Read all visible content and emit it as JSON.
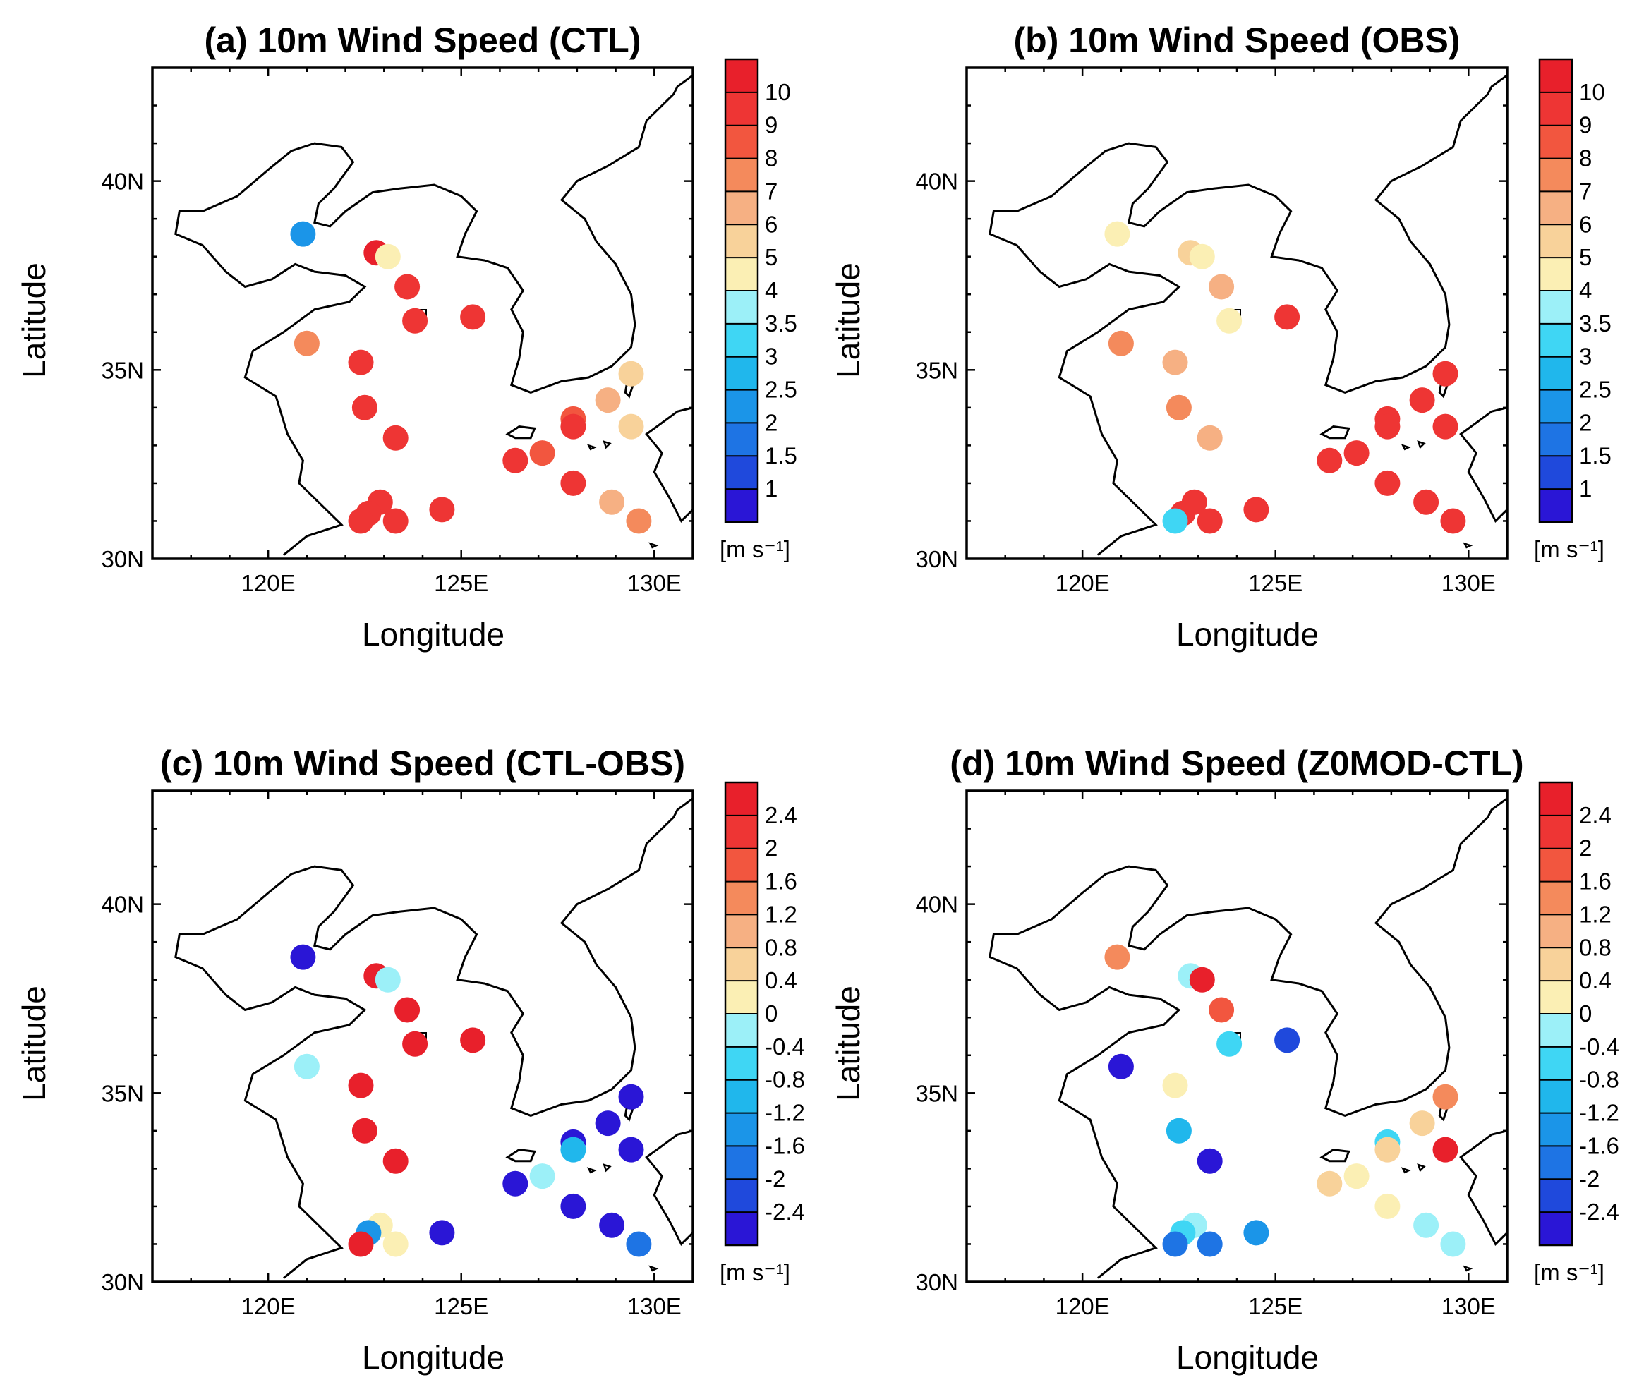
{
  "figure": {
    "x_axis_label": "Longitude",
    "y_axis_label": "Latitude",
    "xticks": [
      "120E",
      "125E",
      "130E"
    ],
    "yticks": [
      "30N",
      "35N",
      "40N"
    ],
    "units_label": "[m s⁻¹]"
  },
  "chart_data": [
    {
      "type": "scatter",
      "panel": "a",
      "title": "(a) 10m Wind Speed (CTL)",
      "xlabel": "Longitude",
      "ylabel": "Latitude",
      "xlim": [
        117,
        131
      ],
      "ylim": [
        30,
        43
      ],
      "colorbar": {
        "labels": [
          "1",
          "1.5",
          "2",
          "2.5",
          "3",
          "3.5",
          "4",
          "5",
          "6",
          "7",
          "8",
          "9",
          "10"
        ],
        "colors": [
          "#2a16d6",
          "#1f49dc",
          "#1e74e4",
          "#1b95e8",
          "#20b7ec",
          "#3fd6f4",
          "#9cf0f8",
          "#fbefb4",
          "#f8d29a",
          "#f6b083",
          "#f48a5c",
          "#f2563f",
          "#ee3534",
          "#e8202b"
        ]
      },
      "points": [
        {
          "lon": 120.9,
          "lat": 38.6,
          "value": 2.0
        },
        {
          "lon": 122.8,
          "lat": 38.1,
          "value": 10.0
        },
        {
          "lon": 123.1,
          "lat": 38.0,
          "value": 4.5
        },
        {
          "lon": 123.6,
          "lat": 37.2,
          "value": 9.5
        },
        {
          "lon": 123.8,
          "lat": 36.3,
          "value": 9.5
        },
        {
          "lon": 125.3,
          "lat": 36.4,
          "value": 9.5
        },
        {
          "lon": 121.0,
          "lat": 35.7,
          "value": 7.5
        },
        {
          "lon": 122.4,
          "lat": 35.2,
          "value": 9.5
        },
        {
          "lon": 122.5,
          "lat": 34.0,
          "value": 9.5
        },
        {
          "lon": 123.3,
          "lat": 33.2,
          "value": 9.5
        },
        {
          "lon": 122.9,
          "lat": 31.5,
          "value": 9.5
        },
        {
          "lon": 122.6,
          "lat": 31.2,
          "value": 9.5
        },
        {
          "lon": 122.4,
          "lat": 31.0,
          "value": 9.5
        },
        {
          "lon": 123.3,
          "lat": 31.0,
          "value": 9.5
        },
        {
          "lon": 124.5,
          "lat": 31.3,
          "value": 9.5
        },
        {
          "lon": 126.4,
          "lat": 32.6,
          "value": 9.5
        },
        {
          "lon": 127.1,
          "lat": 32.8,
          "value": 8.5
        },
        {
          "lon": 127.9,
          "lat": 33.7,
          "value": 8.5
        },
        {
          "lon": 127.9,
          "lat": 33.5,
          "value": 9.5
        },
        {
          "lon": 127.9,
          "lat": 32.0,
          "value": 9.5
        },
        {
          "lon": 128.8,
          "lat": 34.2,
          "value": 6.5
        },
        {
          "lon": 129.4,
          "lat": 34.9,
          "value": 5.5
        },
        {
          "lon": 129.4,
          "lat": 33.5,
          "value": 5.5
        },
        {
          "lon": 128.9,
          "lat": 31.5,
          "value": 6.5
        },
        {
          "lon": 129.6,
          "lat": 31.0,
          "value": 7.5
        }
      ]
    },
    {
      "type": "scatter",
      "panel": "b",
      "title": "(b) 10m Wind Speed (OBS)",
      "xlabel": "Longitude",
      "ylabel": "Latitude",
      "xlim": [
        117,
        131
      ],
      "ylim": [
        30,
        43
      ],
      "colorbar": {
        "labels": [
          "1",
          "1.5",
          "2",
          "2.5",
          "3",
          "3.5",
          "4",
          "5",
          "6",
          "7",
          "8",
          "9",
          "10"
        ],
        "colors": [
          "#2a16d6",
          "#1f49dc",
          "#1e74e4",
          "#1b95e8",
          "#20b7ec",
          "#3fd6f4",
          "#9cf0f8",
          "#fbefb4",
          "#f8d29a",
          "#f6b083",
          "#f48a5c",
          "#f2563f",
          "#ee3534",
          "#e8202b"
        ]
      },
      "points": [
        {
          "lon": 120.9,
          "lat": 38.6,
          "value": 4.5
        },
        {
          "lon": 122.8,
          "lat": 38.1,
          "value": 5.5
        },
        {
          "lon": 123.1,
          "lat": 38.0,
          "value": 4.5
        },
        {
          "lon": 123.6,
          "lat": 37.2,
          "value": 6.5
        },
        {
          "lon": 123.8,
          "lat": 36.3,
          "value": 4.5
        },
        {
          "lon": 125.3,
          "lat": 36.4,
          "value": 9.5
        },
        {
          "lon": 121.0,
          "lat": 35.7,
          "value": 7.5
        },
        {
          "lon": 122.4,
          "lat": 35.2,
          "value": 6.5
        },
        {
          "lon": 122.5,
          "lat": 34.0,
          "value": 7.5
        },
        {
          "lon": 123.3,
          "lat": 33.2,
          "value": 6.5
        },
        {
          "lon": 122.9,
          "lat": 31.5,
          "value": 9.5
        },
        {
          "lon": 122.6,
          "lat": 31.2,
          "value": 9.5
        },
        {
          "lon": 122.4,
          "lat": 31.0,
          "value": 3.2
        },
        {
          "lon": 123.3,
          "lat": 31.0,
          "value": 9.5
        },
        {
          "lon": 124.5,
          "lat": 31.3,
          "value": 9.5
        },
        {
          "lon": 126.4,
          "lat": 32.6,
          "value": 9.5
        },
        {
          "lon": 127.1,
          "lat": 32.8,
          "value": 9.5
        },
        {
          "lon": 127.9,
          "lat": 33.7,
          "value": 9.5
        },
        {
          "lon": 127.9,
          "lat": 33.5,
          "value": 9.5
        },
        {
          "lon": 127.9,
          "lat": 32.0,
          "value": 9.5
        },
        {
          "lon": 128.8,
          "lat": 34.2,
          "value": 9.5
        },
        {
          "lon": 129.4,
          "lat": 34.9,
          "value": 9.5
        },
        {
          "lon": 129.4,
          "lat": 33.5,
          "value": 9.5
        },
        {
          "lon": 128.9,
          "lat": 31.5,
          "value": 9.5
        },
        {
          "lon": 129.6,
          "lat": 31.0,
          "value": 9.5
        }
      ]
    },
    {
      "type": "scatter",
      "panel": "c",
      "title": "(c) 10m Wind Speed (CTL-OBS)",
      "xlabel": "Longitude",
      "ylabel": "Latitude",
      "xlim": [
        117,
        131
      ],
      "ylim": [
        30,
        43
      ],
      "colorbar": {
        "labels": [
          "-2.4",
          "-2",
          "-1.6",
          "-1.2",
          "-0.8",
          "-0.4",
          "0",
          "0.4",
          "0.8",
          "1.2",
          "1.6",
          "2",
          "2.4"
        ],
        "colors": [
          "#2a16d6",
          "#1f49dc",
          "#1e74e4",
          "#1b95e8",
          "#20b7ec",
          "#3fd6f4",
          "#9cf0f8",
          "#fbefb4",
          "#f8d29a",
          "#f6b083",
          "#f48a5c",
          "#f2563f",
          "#ee3534",
          "#e8202b"
        ]
      },
      "points": [
        {
          "lon": 120.9,
          "lat": 38.6,
          "value": -2.6
        },
        {
          "lon": 122.8,
          "lat": 38.1,
          "value": 2.6
        },
        {
          "lon": 123.1,
          "lat": 38.0,
          "value": -0.2
        },
        {
          "lon": 123.6,
          "lat": 37.2,
          "value": 2.6
        },
        {
          "lon": 123.8,
          "lat": 36.3,
          "value": 2.6
        },
        {
          "lon": 125.3,
          "lat": 36.4,
          "value": 2.6
        },
        {
          "lon": 121.0,
          "lat": 35.7,
          "value": -0.2
        },
        {
          "lon": 122.4,
          "lat": 35.2,
          "value": 2.6
        },
        {
          "lon": 122.5,
          "lat": 34.0,
          "value": 2.6
        },
        {
          "lon": 123.3,
          "lat": 33.2,
          "value": 2.6
        },
        {
          "lon": 122.9,
          "lat": 31.5,
          "value": 0.2
        },
        {
          "lon": 122.6,
          "lat": 31.3,
          "value": -1.4
        },
        {
          "lon": 122.4,
          "lat": 31.0,
          "value": 2.6
        },
        {
          "lon": 123.3,
          "lat": 31.0,
          "value": 0.2
        },
        {
          "lon": 124.5,
          "lat": 31.3,
          "value": -2.6
        },
        {
          "lon": 126.4,
          "lat": 32.6,
          "value": -2.6
        },
        {
          "lon": 127.1,
          "lat": 32.8,
          "value": -0.2
        },
        {
          "lon": 127.9,
          "lat": 33.7,
          "value": -2.6
        },
        {
          "lon": 127.9,
          "lat": 33.5,
          "value": -1.0
        },
        {
          "lon": 127.9,
          "lat": 32.0,
          "value": -2.6
        },
        {
          "lon": 128.8,
          "lat": 34.2,
          "value": -2.6
        },
        {
          "lon": 129.4,
          "lat": 34.9,
          "value": -2.6
        },
        {
          "lon": 129.4,
          "lat": 33.5,
          "value": -2.6
        },
        {
          "lon": 128.9,
          "lat": 31.5,
          "value": -2.6
        },
        {
          "lon": 129.6,
          "lat": 31.0,
          "value": -1.8
        }
      ]
    },
    {
      "type": "scatter",
      "panel": "d",
      "title": "(d) 10m Wind Speed (Z0MOD-CTL)",
      "xlabel": "Longitude",
      "ylabel": "Latitude",
      "xlim": [
        117,
        131
      ],
      "ylim": [
        30,
        43
      ],
      "colorbar": {
        "labels": [
          "-2.4",
          "-2",
          "-1.6",
          "-1.2",
          "-0.8",
          "-0.4",
          "0",
          "0.4",
          "0.8",
          "1.2",
          "1.6",
          "2",
          "2.4"
        ],
        "colors": [
          "#2a16d6",
          "#1f49dc",
          "#1e74e4",
          "#1b95e8",
          "#20b7ec",
          "#3fd6f4",
          "#9cf0f8",
          "#fbefb4",
          "#f8d29a",
          "#f6b083",
          "#f48a5c",
          "#f2563f",
          "#ee3534",
          "#e8202b"
        ]
      },
      "points": [
        {
          "lon": 120.9,
          "lat": 38.6,
          "value": 1.4
        },
        {
          "lon": 122.8,
          "lat": 38.1,
          "value": -0.2
        },
        {
          "lon": 123.1,
          "lat": 38.0,
          "value": 2.6
        },
        {
          "lon": 123.6,
          "lat": 37.2,
          "value": 1.8
        },
        {
          "lon": 123.8,
          "lat": 36.3,
          "value": -0.6
        },
        {
          "lon": 125.3,
          "lat": 36.4,
          "value": -2.2
        },
        {
          "lon": 121.0,
          "lat": 35.7,
          "value": -2.6
        },
        {
          "lon": 122.4,
          "lat": 35.2,
          "value": 0.2
        },
        {
          "lon": 122.5,
          "lat": 34.0,
          "value": -1.0
        },
        {
          "lon": 123.3,
          "lat": 33.2,
          "value": -2.6
        },
        {
          "lon": 122.9,
          "lat": 31.5,
          "value": -0.2
        },
        {
          "lon": 122.6,
          "lat": 31.3,
          "value": -0.6
        },
        {
          "lon": 122.4,
          "lat": 31.0,
          "value": -1.8
        },
        {
          "lon": 123.3,
          "lat": 31.0,
          "value": -1.8
        },
        {
          "lon": 124.5,
          "lat": 31.3,
          "value": -1.4
        },
        {
          "lon": 126.4,
          "lat": 32.6,
          "value": 0.6
        },
        {
          "lon": 127.1,
          "lat": 32.8,
          "value": 0.2
        },
        {
          "lon": 127.9,
          "lat": 33.7,
          "value": -0.6
        },
        {
          "lon": 127.9,
          "lat": 33.5,
          "value": 0.6
        },
        {
          "lon": 127.9,
          "lat": 32.0,
          "value": 0.2
        },
        {
          "lon": 128.8,
          "lat": 34.2,
          "value": 0.6
        },
        {
          "lon": 129.4,
          "lat": 34.9,
          "value": 1.4
        },
        {
          "lon": 129.4,
          "lat": 33.5,
          "value": 2.6
        },
        {
          "lon": 128.9,
          "lat": 31.5,
          "value": -0.2
        },
        {
          "lon": 129.6,
          "lat": 31.0,
          "value": -0.2
        }
      ]
    }
  ]
}
